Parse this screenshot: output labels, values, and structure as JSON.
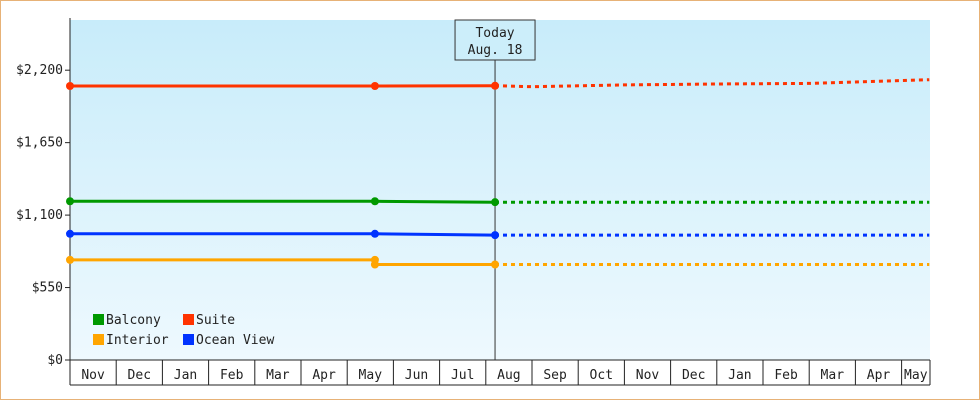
{
  "chart_data": {
    "type": "line",
    "x": [
      "Nov",
      "Dec",
      "Jan",
      "Feb",
      "Mar",
      "Apr",
      "May",
      "Jun",
      "Jul",
      "Aug",
      "Sep",
      "Oct",
      "Nov",
      "Dec",
      "Jan",
      "Feb",
      "Mar",
      "Apr",
      "May"
    ],
    "ylim": [
      0,
      2581
    ],
    "yticks": [
      {
        "value": 0,
        "label": "$0"
      },
      {
        "value": 550,
        "label": "$550"
      },
      {
        "value": 1100,
        "label": "$1,100"
      },
      {
        "value": 1650,
        "label": "$1,650"
      },
      {
        "value": 2200,
        "label": "$2,200"
      }
    ],
    "today": {
      "line1": "Today",
      "line2": "Aug. 18",
      "x": 9.2
    },
    "x_end": 18.6,
    "series": [
      {
        "name": "Suite",
        "color": "#ff3300",
        "solid": [
          [
            0,
            2080
          ],
          [
            6.6,
            2080
          ],
          [
            9.2,
            2082
          ]
        ],
        "markers": [
          0,
          6.6,
          9.2
        ],
        "dotted": [
          [
            9.2,
            2082
          ],
          [
            10,
            2075
          ],
          [
            12,
            2088
          ],
          [
            14,
            2095
          ],
          [
            16,
            2100
          ],
          [
            18.6,
            2128
          ]
        ]
      },
      {
        "name": "Balcony",
        "color": "#009900",
        "solid": [
          [
            0,
            1205
          ],
          [
            6.6,
            1205
          ],
          [
            9.2,
            1198
          ]
        ],
        "markers": [
          0,
          6.6,
          9.2
        ],
        "dotted": [
          [
            9.2,
            1198
          ],
          [
            18.6,
            1198
          ]
        ]
      },
      {
        "name": "Ocean View",
        "color": "#0033ff",
        "solid": [
          [
            0,
            958
          ],
          [
            6.6,
            958
          ],
          [
            9.2,
            948
          ]
        ],
        "markers": [
          0,
          6.6,
          9.2
        ],
        "dotted": [
          [
            9.2,
            948
          ],
          [
            18.6,
            948
          ]
        ]
      },
      {
        "name": "Interior",
        "color": "#ffa500",
        "solid": [
          [
            0,
            760
          ],
          [
            6.6,
            760
          ],
          [
            6.6,
            725
          ],
          [
            9.2,
            725
          ]
        ],
        "markers": [
          0,
          6.6,
          9.2
        ],
        "dotted": [
          [
            9.2,
            725
          ],
          [
            18.6,
            725
          ]
        ]
      }
    ],
    "legend": {
      "placement": "bottom-left",
      "order": [
        "Balcony",
        "Suite",
        "Interior",
        "Ocean View"
      ]
    },
    "grid": false
  }
}
